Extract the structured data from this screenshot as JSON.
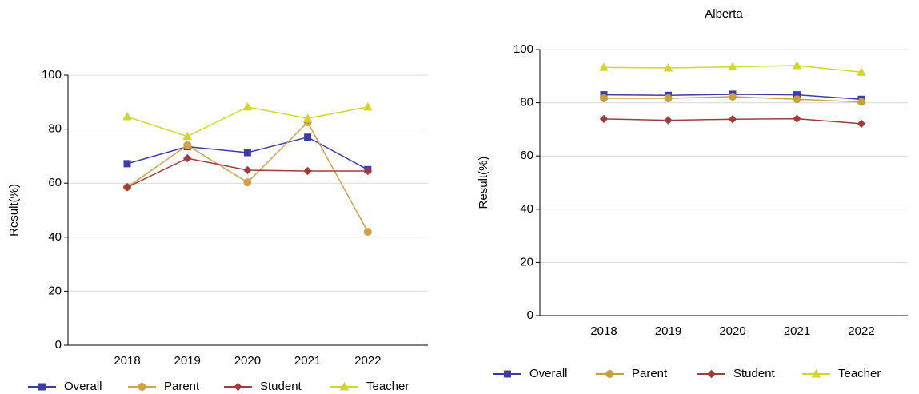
{
  "chart_data": [
    {
      "type": "line",
      "y_label": "Result(%)",
      "categories": [
        "2018",
        "2019",
        "2020",
        "2021",
        "2022"
      ],
      "ylim": [
        0,
        100
      ],
      "yticks": [
        0,
        20,
        40,
        60,
        80,
        100
      ],
      "grid": true,
      "legend": "bottom",
      "series": [
        {
          "name": "Overall",
          "color": "#3c3ca8",
          "marker": "square",
          "values": [
            67.2,
            73.5,
            71.3,
            77,
            65
          ]
        },
        {
          "name": "Parent",
          "color": "#d4a04a",
          "marker": "circle",
          "values": [
            58.5,
            74,
            60.3,
            82.5,
            42
          ]
        },
        {
          "name": "Student",
          "color": "#a03c3c",
          "marker": "diamond",
          "values": [
            58.5,
            69.2,
            64.8,
            64.5,
            64.5
          ]
        },
        {
          "name": "Teacher",
          "color": "#d4d42a",
          "marker": "triangle",
          "values": [
            84.6,
            77.3,
            88.2,
            84,
            88.2
          ]
        }
      ]
    },
    {
      "type": "line",
      "title": "Alberta",
      "y_label": "Result(%)",
      "categories": [
        "2018",
        "2019",
        "2020",
        "2021",
        "2022"
      ],
      "ylim": [
        0,
        100
      ],
      "yticks": [
        0,
        20,
        40,
        60,
        80,
        100
      ],
      "grid": true,
      "legend": "bottom",
      "series": [
        {
          "name": "Overall",
          "color": "#3c3ca8",
          "marker": "square",
          "values": [
            83,
            82.8,
            83.2,
            83,
            81.3
          ]
        },
        {
          "name": "Parent",
          "color": "#c8a03c",
          "marker": "circle",
          "values": [
            81.7,
            81.7,
            82.3,
            81.3,
            80.3
          ]
        },
        {
          "name": "Student",
          "color": "#a03c3c",
          "marker": "diamond",
          "values": [
            73.9,
            73.4,
            73.8,
            74,
            72.1
          ]
        },
        {
          "name": "Teacher",
          "color": "#d4d42a",
          "marker": "triangle",
          "values": [
            93.3,
            93.1,
            93.5,
            94,
            91.5
          ]
        }
      ]
    }
  ]
}
